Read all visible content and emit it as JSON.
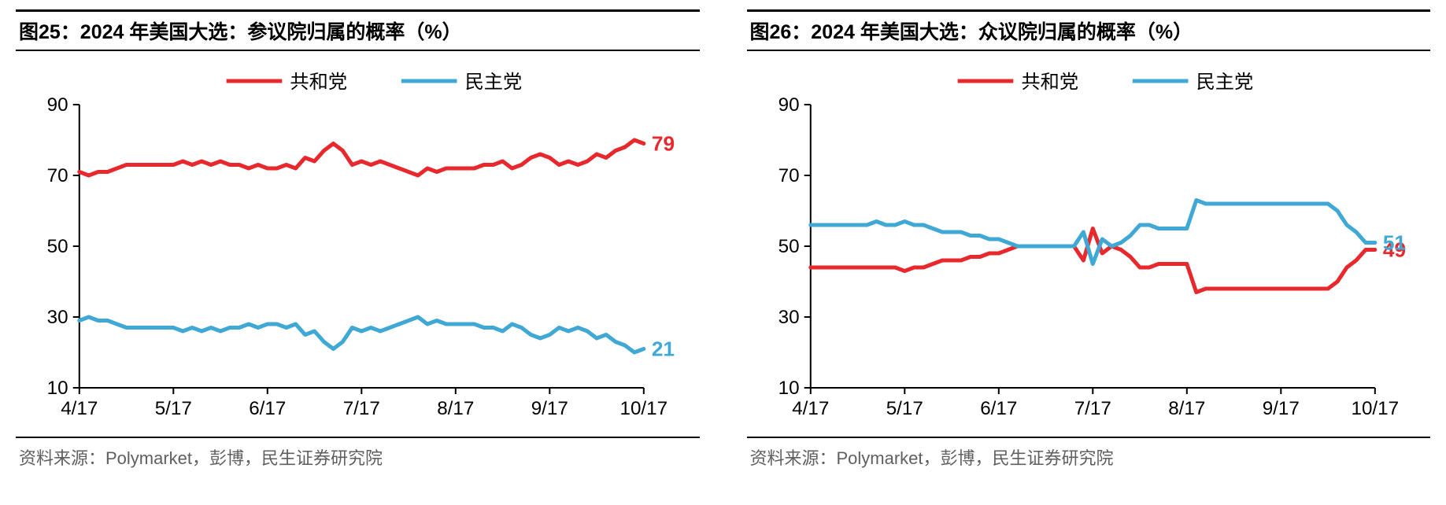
{
  "panels": [
    {
      "id": "chart25",
      "title": "图25：2024 年美国大选：参议院归属的概率（%）",
      "source": "资料来源：Polymarket，彭博，民生证券研究院",
      "chart": {
        "type": "line",
        "ylim": [
          10,
          90
        ],
        "ytick_step": 20,
        "yticks": [
          10,
          30,
          50,
          70,
          90
        ],
        "xticks": [
          "4/17",
          "5/17",
          "6/17",
          "7/17",
          "8/17",
          "9/17",
          "10/17"
        ],
        "background_color": "#ffffff",
        "axis_color": "#000000",
        "tick_color": "#000000",
        "line_width": 5,
        "label_fontsize": 24,
        "end_label_fontsize": 26,
        "legend": {
          "position": "top-center",
          "items": [
            {
              "label": "共和党",
              "color": "#e7292d"
            },
            {
              "label": "民主党",
              "color": "#3fa8d4"
            }
          ]
        },
        "series": [
          {
            "name": "共和党",
            "color": "#e7292d",
            "end_value": 79,
            "values": [
              71,
              70,
              71,
              71,
              72,
              73,
              73,
              73,
              73,
              73,
              73,
              74,
              73,
              74,
              73,
              74,
              73,
              73,
              72,
              73,
              72,
              72,
              73,
              72,
              75,
              74,
              77,
              79,
              77,
              73,
              74,
              73,
              74,
              73,
              72,
              71,
              70,
              72,
              71,
              72,
              72,
              72,
              72,
              73,
              73,
              74,
              72,
              73,
              75,
              76,
              75,
              73,
              74,
              73,
              74,
              76,
              75,
              77,
              78,
              80,
              79
            ]
          },
          {
            "name": "民主党",
            "color": "#3fa8d4",
            "end_value": 21,
            "values": [
              29,
              30,
              29,
              29,
              28,
              27,
              27,
              27,
              27,
              27,
              27,
              26,
              27,
              26,
              27,
              26,
              27,
              27,
              28,
              27,
              28,
              28,
              27,
              28,
              25,
              26,
              23,
              21,
              23,
              27,
              26,
              27,
              26,
              27,
              28,
              29,
              30,
              28,
              29,
              28,
              28,
              28,
              28,
              27,
              27,
              26,
              28,
              27,
              25,
              24,
              25,
              27,
              26,
              27,
              26,
              24,
              25,
              23,
              22,
              20,
              21
            ]
          }
        ]
      }
    },
    {
      "id": "chart26",
      "title": "图26：2024 年美国大选：众议院归属的概率（%）",
      "source": "资料来源：Polymarket，彭博，民生证券研究院",
      "chart": {
        "type": "line",
        "ylim": [
          10,
          90
        ],
        "ytick_step": 20,
        "yticks": [
          10,
          30,
          50,
          70,
          90
        ],
        "xticks": [
          "4/17",
          "5/17",
          "6/17",
          "7/17",
          "8/17",
          "9/17",
          "10/17"
        ],
        "background_color": "#ffffff",
        "axis_color": "#000000",
        "tick_color": "#000000",
        "line_width": 5,
        "label_fontsize": 24,
        "end_label_fontsize": 26,
        "legend": {
          "position": "top-center",
          "items": [
            {
              "label": "共和党",
              "color": "#e7292d"
            },
            {
              "label": "民主党",
              "color": "#3fa8d4"
            }
          ]
        },
        "series": [
          {
            "name": "共和党",
            "color": "#e7292d",
            "end_value": 49,
            "values": [
              44,
              44,
              44,
              44,
              44,
              44,
              44,
              44,
              44,
              44,
              43,
              44,
              44,
              45,
              46,
              46,
              46,
              47,
              47,
              48,
              48,
              49,
              50,
              50,
              50,
              50,
              50,
              50,
              50,
              46,
              55,
              48,
              50,
              49,
              47,
              44,
              44,
              45,
              45,
              45,
              45,
              37,
              38,
              38,
              38,
              38,
              38,
              38,
              38,
              38,
              38,
              38,
              38,
              38,
              38,
              38,
              40,
              44,
              46,
              49,
              49
            ]
          },
          {
            "name": "民主党",
            "color": "#3fa8d4",
            "end_value": 51,
            "values": [
              56,
              56,
              56,
              56,
              56,
              56,
              56,
              57,
              56,
              56,
              57,
              56,
              56,
              55,
              54,
              54,
              54,
              53,
              53,
              52,
              52,
              51,
              50,
              50,
              50,
              50,
              50,
              50,
              50,
              54,
              45,
              52,
              50,
              51,
              53,
              56,
              56,
              55,
              55,
              55,
              55,
              63,
              62,
              62,
              62,
              62,
              62,
              62,
              62,
              62,
              62,
              62,
              62,
              62,
              62,
              62,
              60,
              56,
              54,
              51,
              51
            ]
          }
        ]
      }
    }
  ]
}
